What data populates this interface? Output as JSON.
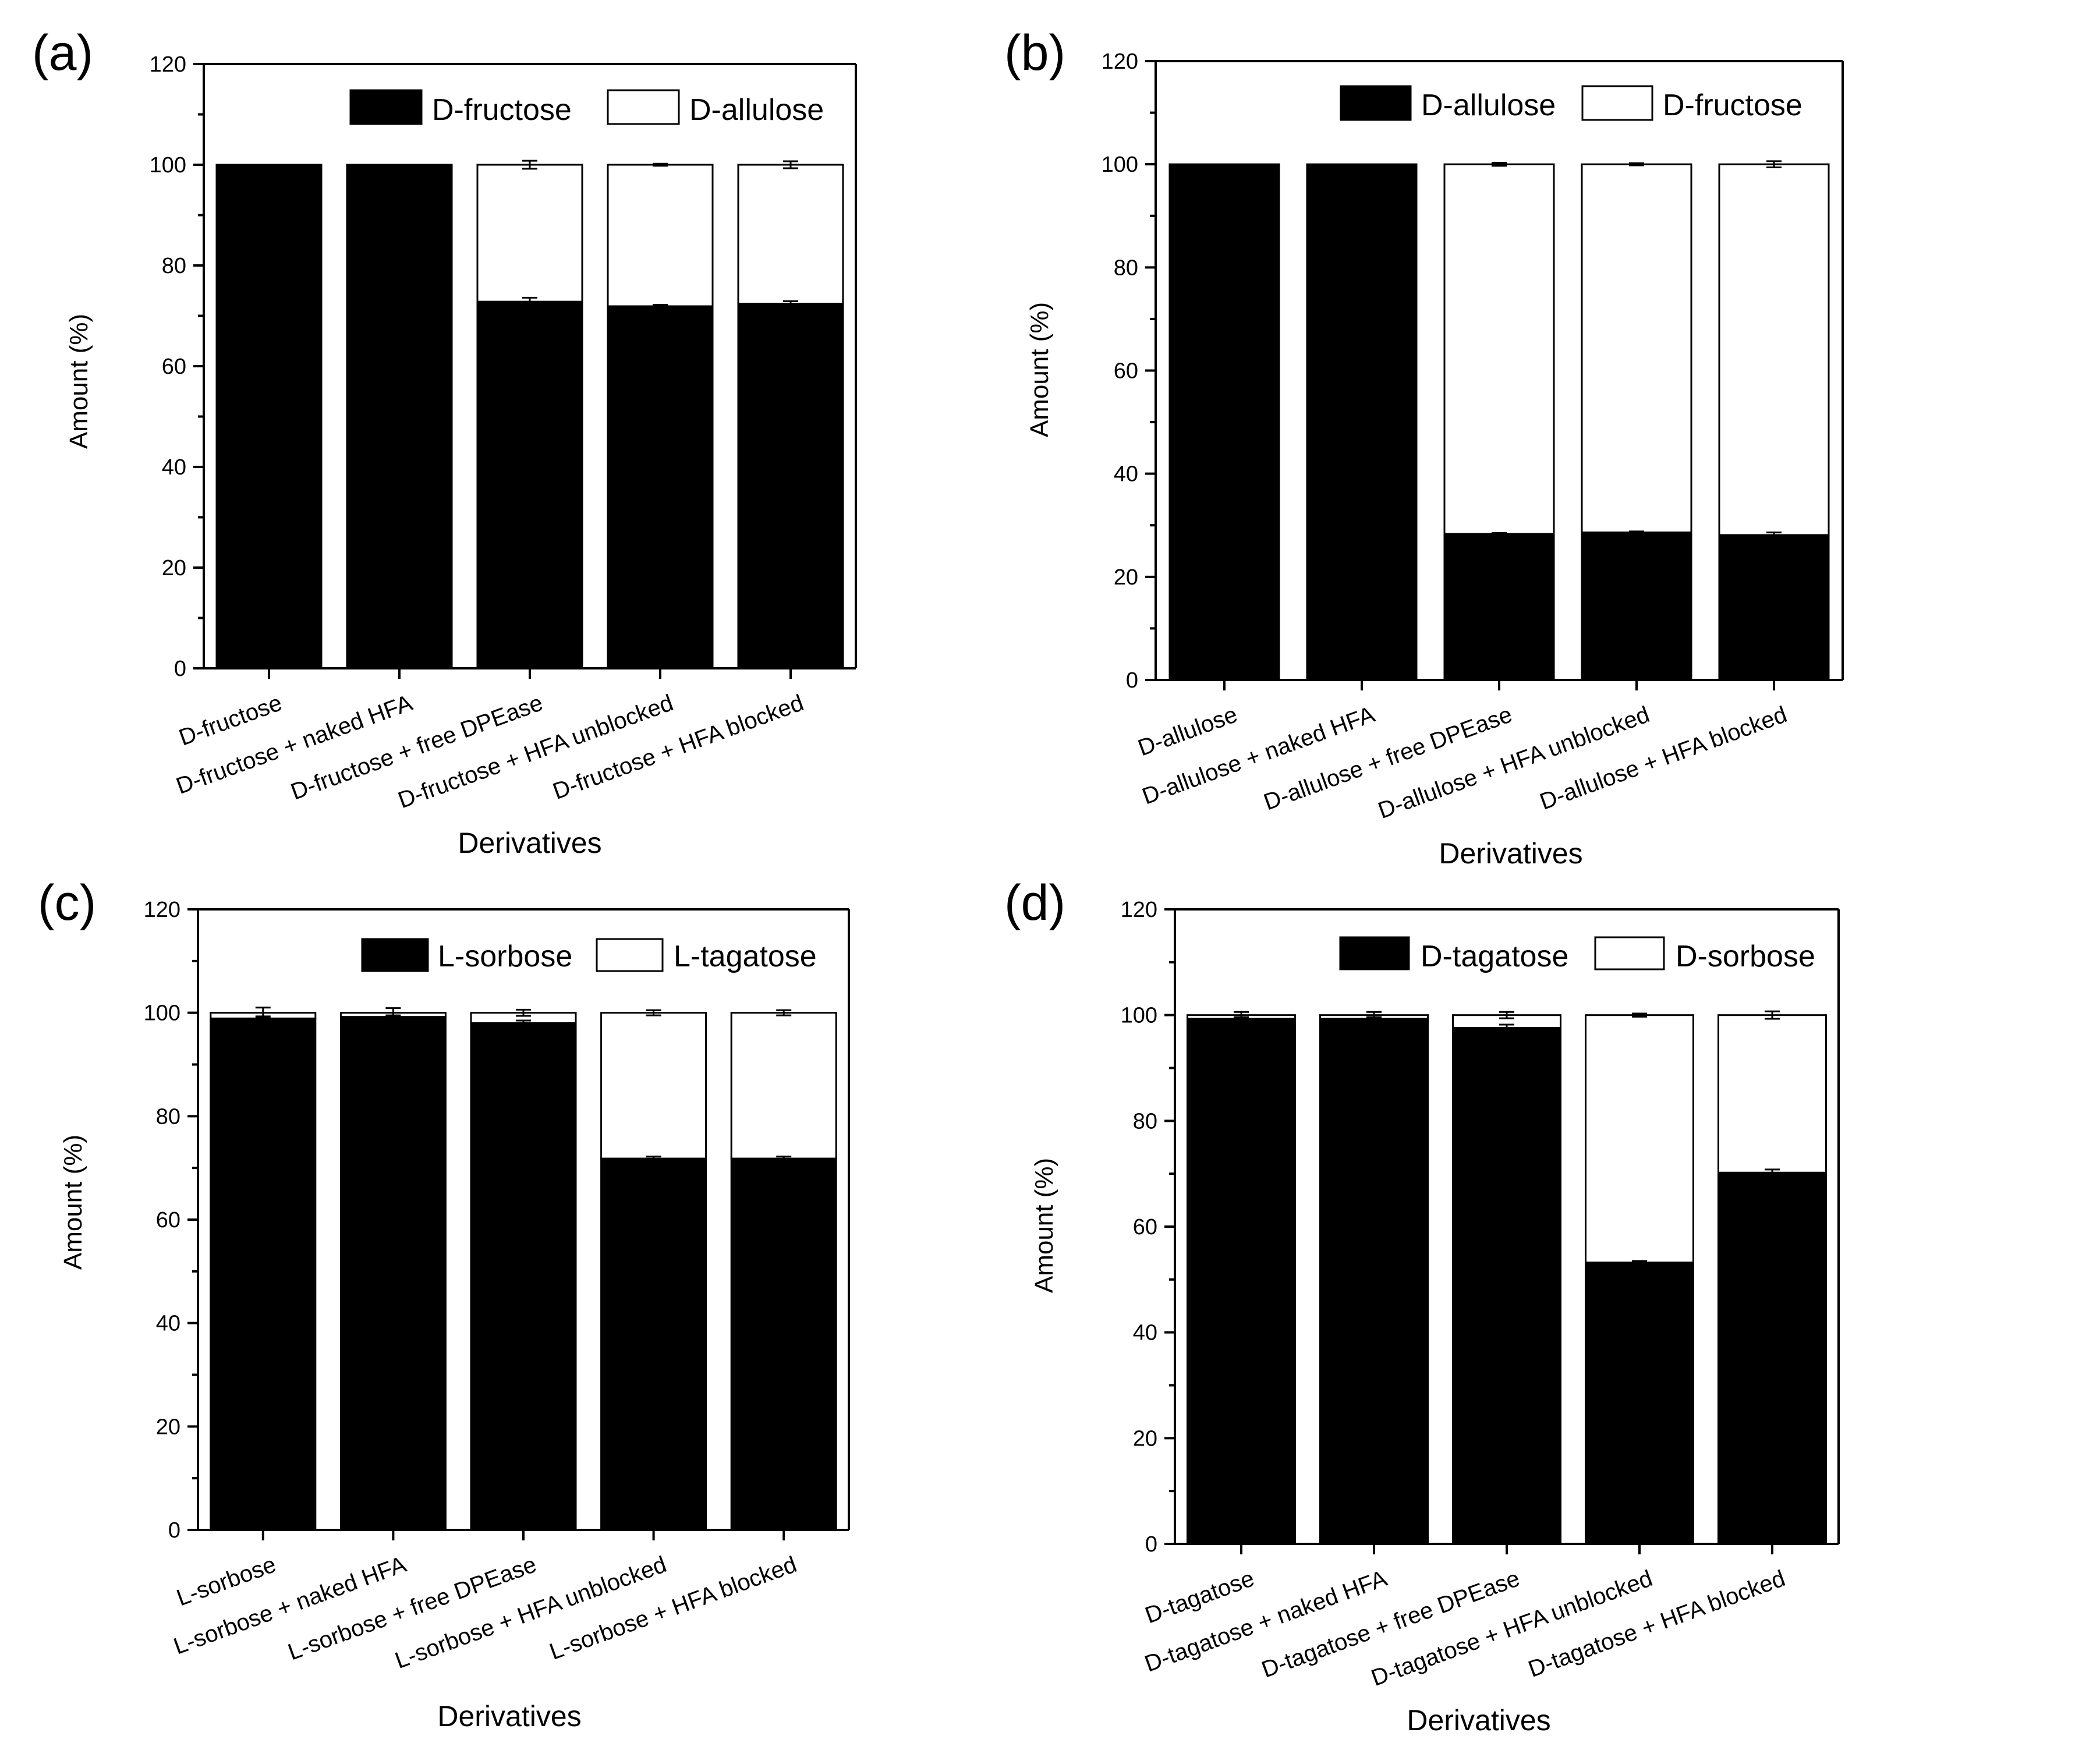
{
  "figure": {
    "background": "#ffffff",
    "bar_primary_color": "#000000",
    "bar_secondary_color": "#ffffff"
  },
  "chart_data": [
    {
      "type": "bar",
      "stacked": true,
      "panel_label": "(a)",
      "title": "",
      "xlabel": "Derivatives",
      "ylabel": "Amount (%)",
      "ylim": [
        0,
        120
      ],
      "yticks": [
        "0",
        "20",
        "40",
        "60",
        "80",
        "100",
        "120"
      ],
      "legend_position": "top-right",
      "categories": [
        "D-fructose",
        "D-fructose + naked HFA",
        "D-fructose + free DPEase",
        "D-fructose + HFA unblocked",
        "D-fructose + HFA blocked"
      ],
      "series": [
        {
          "name": "D-fructose",
          "color": "#000000",
          "values": [
            100,
            100,
            72.8,
            71.9,
            72.4
          ],
          "errors": [
            0,
            0,
            0.8,
            0.3,
            0.5
          ]
        },
        {
          "name": "D-allulose",
          "color": "#ffffff",
          "values": [
            0,
            0,
            27.2,
            28.1,
            27.6
          ],
          "errors": [
            0,
            0,
            0.8,
            0.2,
            0.7
          ]
        }
      ]
    },
    {
      "type": "bar",
      "stacked": true,
      "panel_label": "(b)",
      "title": "",
      "xlabel": "Derivatives",
      "ylabel": "Amount (%)",
      "ylim": [
        0,
        120
      ],
      "yticks": [
        "0",
        "20",
        "40",
        "60",
        "80",
        "100",
        "120"
      ],
      "legend_position": "top-right",
      "categories": [
        "D-allulose",
        "D-allulose + naked HFA",
        "D-allulose + free DPEase",
        "D-allulose + HFA unblocked",
        "D-allulose + HFA blocked"
      ],
      "series": [
        {
          "name": "D-allulose",
          "color": "#000000",
          "values": [
            100,
            100,
            28.3,
            28.6,
            28.1
          ],
          "errors": [
            0,
            0,
            0.2,
            0.2,
            0.5
          ]
        },
        {
          "name": "D-fructose",
          "color": "#ffffff",
          "values": [
            0,
            0,
            71.7,
            71.4,
            71.9
          ],
          "errors": [
            0,
            0,
            0.3,
            0.2,
            0.6
          ]
        }
      ]
    },
    {
      "type": "bar",
      "stacked": true,
      "panel_label": "(c)",
      "title": "",
      "xlabel": "Derivatives",
      "ylabel": "Amount (%)",
      "ylim": [
        0,
        120
      ],
      "yticks": [
        "0",
        "20",
        "40",
        "60",
        "80",
        "100",
        "120"
      ],
      "legend_position": "top-right",
      "categories": [
        "L-sorbose",
        "L-sorbose + naked HFA",
        "L-sorbose + free DPEase",
        "L-sorbose + HFA unblocked",
        "L-sorbose + HFA blocked"
      ],
      "series": [
        {
          "name": "L-sorbose",
          "color": "#000000",
          "values": [
            98.9,
            99.2,
            98.0,
            71.8,
            71.8
          ],
          "errors": [
            0.4,
            0.3,
            0.5,
            0.4,
            0.4
          ]
        },
        {
          "name": "L-tagatose",
          "color": "#ffffff",
          "values": [
            1.1,
            0.8,
            2.0,
            28.2,
            28.2
          ],
          "errors": [
            1.0,
            0.9,
            0.6,
            0.5,
            0.5
          ]
        }
      ]
    },
    {
      "type": "bar",
      "stacked": true,
      "panel_label": "(d)",
      "title": "",
      "xlabel": "Derivatives",
      "ylabel": "Amount (%)",
      "ylim": [
        0,
        120
      ],
      "yticks": [
        "0",
        "20",
        "40",
        "60",
        "80",
        "100",
        "120"
      ],
      "legend_position": "top-right",
      "categories": [
        "D-tagatose",
        "D-tagatose + naked HFA",
        "D-tagatose + free DPEase",
        "D-tagatose + HFA unblocked",
        "D-tagatose + HFA blocked"
      ],
      "series": [
        {
          "name": "D-tagatose",
          "color": "#000000",
          "values": [
            99.3,
            99.3,
            97.6,
            53.2,
            70.2
          ],
          "errors": [
            0.3,
            0.3,
            0.6,
            0.3,
            0.6
          ]
        },
        {
          "name": "D-sorbose",
          "color": "#ffffff",
          "values": [
            0.7,
            0.7,
            2.4,
            46.8,
            29.8
          ],
          "errors": [
            0.6,
            0.6,
            0.6,
            0.3,
            0.7
          ]
        }
      ]
    }
  ]
}
